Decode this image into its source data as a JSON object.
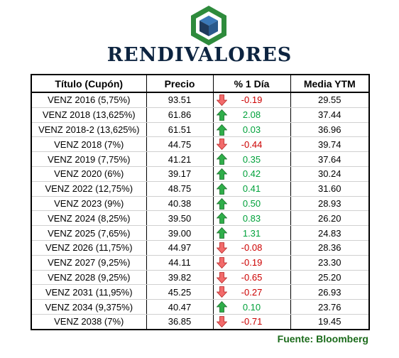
{
  "brand": {
    "name": "RENDIVALORES"
  },
  "colors": {
    "positive": "#00a13a",
    "negative": "#cc0000",
    "brand_green": "#2e8b3c",
    "brand_navy": "#0d2440"
  },
  "table": {
    "headers": [
      "Título (Cupón)",
      "Precio",
      "% 1 Día",
      "Media YTM"
    ],
    "rows": [
      {
        "title": "VENZ 2016 (5,75%)",
        "price": "93.51",
        "change": "-0.19",
        "direction": "down",
        "ytm": "29.55"
      },
      {
        "title": "VENZ 2018 (13,625%)",
        "price": "61.86",
        "change": "2.08",
        "direction": "up",
        "ytm": "37.44"
      },
      {
        "title": "VENZ 2018-2 (13,625%)",
        "price": "61.51",
        "change": "0.03",
        "direction": "up",
        "ytm": "36.96"
      },
      {
        "title": "VENZ 2018 (7%)",
        "price": "44.75",
        "change": "-0.44",
        "direction": "down",
        "ytm": "39.74"
      },
      {
        "title": "VENZ 2019 (7,75%)",
        "price": "41.21",
        "change": "0.35",
        "direction": "up",
        "ytm": "37.64"
      },
      {
        "title": "VENZ 2020 (6%)",
        "price": "39.17",
        "change": "0.42",
        "direction": "up",
        "ytm": "30.24"
      },
      {
        "title": "VENZ 2022 (12,75%)",
        "price": "48.75",
        "change": "0.41",
        "direction": "up",
        "ytm": "31.60"
      },
      {
        "title": "VENZ 2023 (9%)",
        "price": "40.38",
        "change": "0.50",
        "direction": "up",
        "ytm": "28.93"
      },
      {
        "title": "VENZ 2024 (8,25%)",
        "price": "39.50",
        "change": "0.83",
        "direction": "up",
        "ytm": "26.20"
      },
      {
        "title": "VENZ 2025 (7,65%)",
        "price": "39.00",
        "change": "1.31",
        "direction": "up",
        "ytm": "24.83"
      },
      {
        "title": "VENZ 2026 (11,75%)",
        "price": "44.97",
        "change": "-0.08",
        "direction": "down",
        "ytm": "28.36"
      },
      {
        "title": "VENZ 2027 (9,25%)",
        "price": "44.11",
        "change": "-0.19",
        "direction": "down",
        "ytm": "23.30"
      },
      {
        "title": "VENZ 2028 (9,25%)",
        "price": "39.82",
        "change": "-0.65",
        "direction": "down",
        "ytm": "25.20"
      },
      {
        "title": "VENZ 2031 (11,95%)",
        "price": "45.25",
        "change": "-0.27",
        "direction": "down",
        "ytm": "26.93"
      },
      {
        "title": "VENZ 2034 (9,375%)",
        "price": "40.47",
        "change": "0.10",
        "direction": "up",
        "ytm": "23.76"
      },
      {
        "title": "VENZ 2038 (7%)",
        "price": "36.85",
        "change": "-0.71",
        "direction": "down",
        "ytm": "19.45"
      }
    ]
  },
  "footer": {
    "source": "Fuente: Bloomberg"
  }
}
